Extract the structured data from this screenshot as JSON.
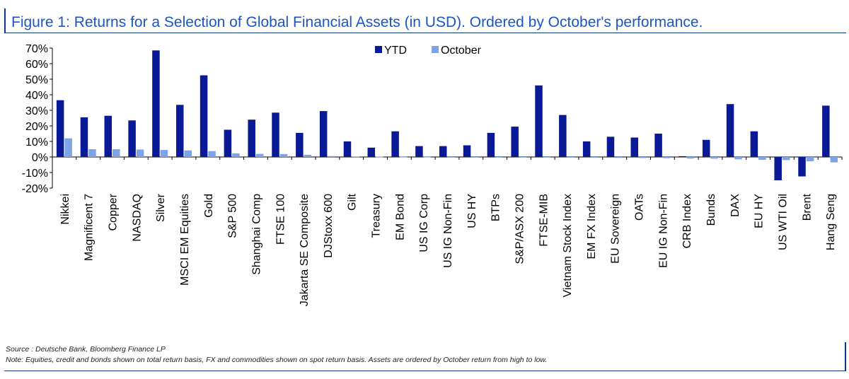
{
  "title": "Figure 1: Returns for a Selection of Global Financial Assets (in USD). Ordered by October's performance.",
  "source": "Source : Deutsche Bank, Bloomberg Finance LP",
  "note": "Note: Equities, credit and bonds shown on total return basis, FX and commodities shown on spot return basis. Assets are ordered by October return from high to low.",
  "colors": {
    "ytd": "#0a1a96",
    "october": "#7ea4e8",
    "axis": "#000000",
    "accent": "#1a56c4"
  },
  "chart_data": {
    "type": "bar",
    "title": "Returns for a Selection of Global Financial Assets (in USD)",
    "xlabel": "",
    "ylabel": "",
    "ylim": [
      -20,
      70
    ],
    "yticks": [
      -20,
      -10,
      0,
      10,
      20,
      30,
      40,
      50,
      60,
      70
    ],
    "ytick_labels": [
      "-20%",
      "-10%",
      "0%",
      "10%",
      "20%",
      "30%",
      "40%",
      "50%",
      "60%",
      "70%"
    ],
    "legend": {
      "position": "top-center",
      "labels": [
        "YTD",
        "October"
      ]
    },
    "categories": [
      "Nikkei",
      "Magnificent 7",
      "Copper",
      "NASDAQ",
      "Silver",
      "MSCI EM Equities",
      "Gold",
      "S&P 500",
      "Shanghai Comp",
      "FTSE 100",
      "Jakarta SE Composite",
      "DJStoxx 600",
      "Gilt",
      "Treasury",
      "EM Bond",
      "US IG Corp",
      "US IG Non-Fin",
      "US HY",
      "BTPs",
      "S&P/ASX 200",
      "FTSE-MIB",
      "Vietnam Stock Index",
      "EM FX Index",
      "EU Sovereign",
      "OATs",
      "EU IG Non-Fin",
      "CRB Index",
      "Bunds",
      "DAX",
      "EU HY",
      "US WTI Oil",
      "Brent",
      "Hang Seng"
    ],
    "series": [
      {
        "name": "YTD",
        "values": [
          36.5,
          25.5,
          26.5,
          23.5,
          68.5,
          33.5,
          52.5,
          17.5,
          24,
          28.5,
          15.5,
          29.5,
          10,
          6,
          16.5,
          7,
          7,
          7.5,
          15.5,
          19.5,
          46,
          27,
          10,
          13,
          12.5,
          15,
          0.5,
          11,
          34,
          16.5,
          -15,
          -12.5,
          33
        ]
      },
      {
        "name": "October",
        "values": [
          12,
          5,
          5,
          4.8,
          4.5,
          4.2,
          3.8,
          2.3,
          2.0,
          1.9,
          1.4,
          0.6,
          0.3,
          0.2,
          0.1,
          0.1,
          0.0,
          0.0,
          -0.1,
          -0.2,
          -0.3,
          -0.4,
          -0.5,
          -0.6,
          -0.7,
          -0.8,
          -1.0,
          -1.1,
          -1.5,
          -1.8,
          -2.0,
          -2.8,
          -3.5
        ]
      }
    ]
  }
}
